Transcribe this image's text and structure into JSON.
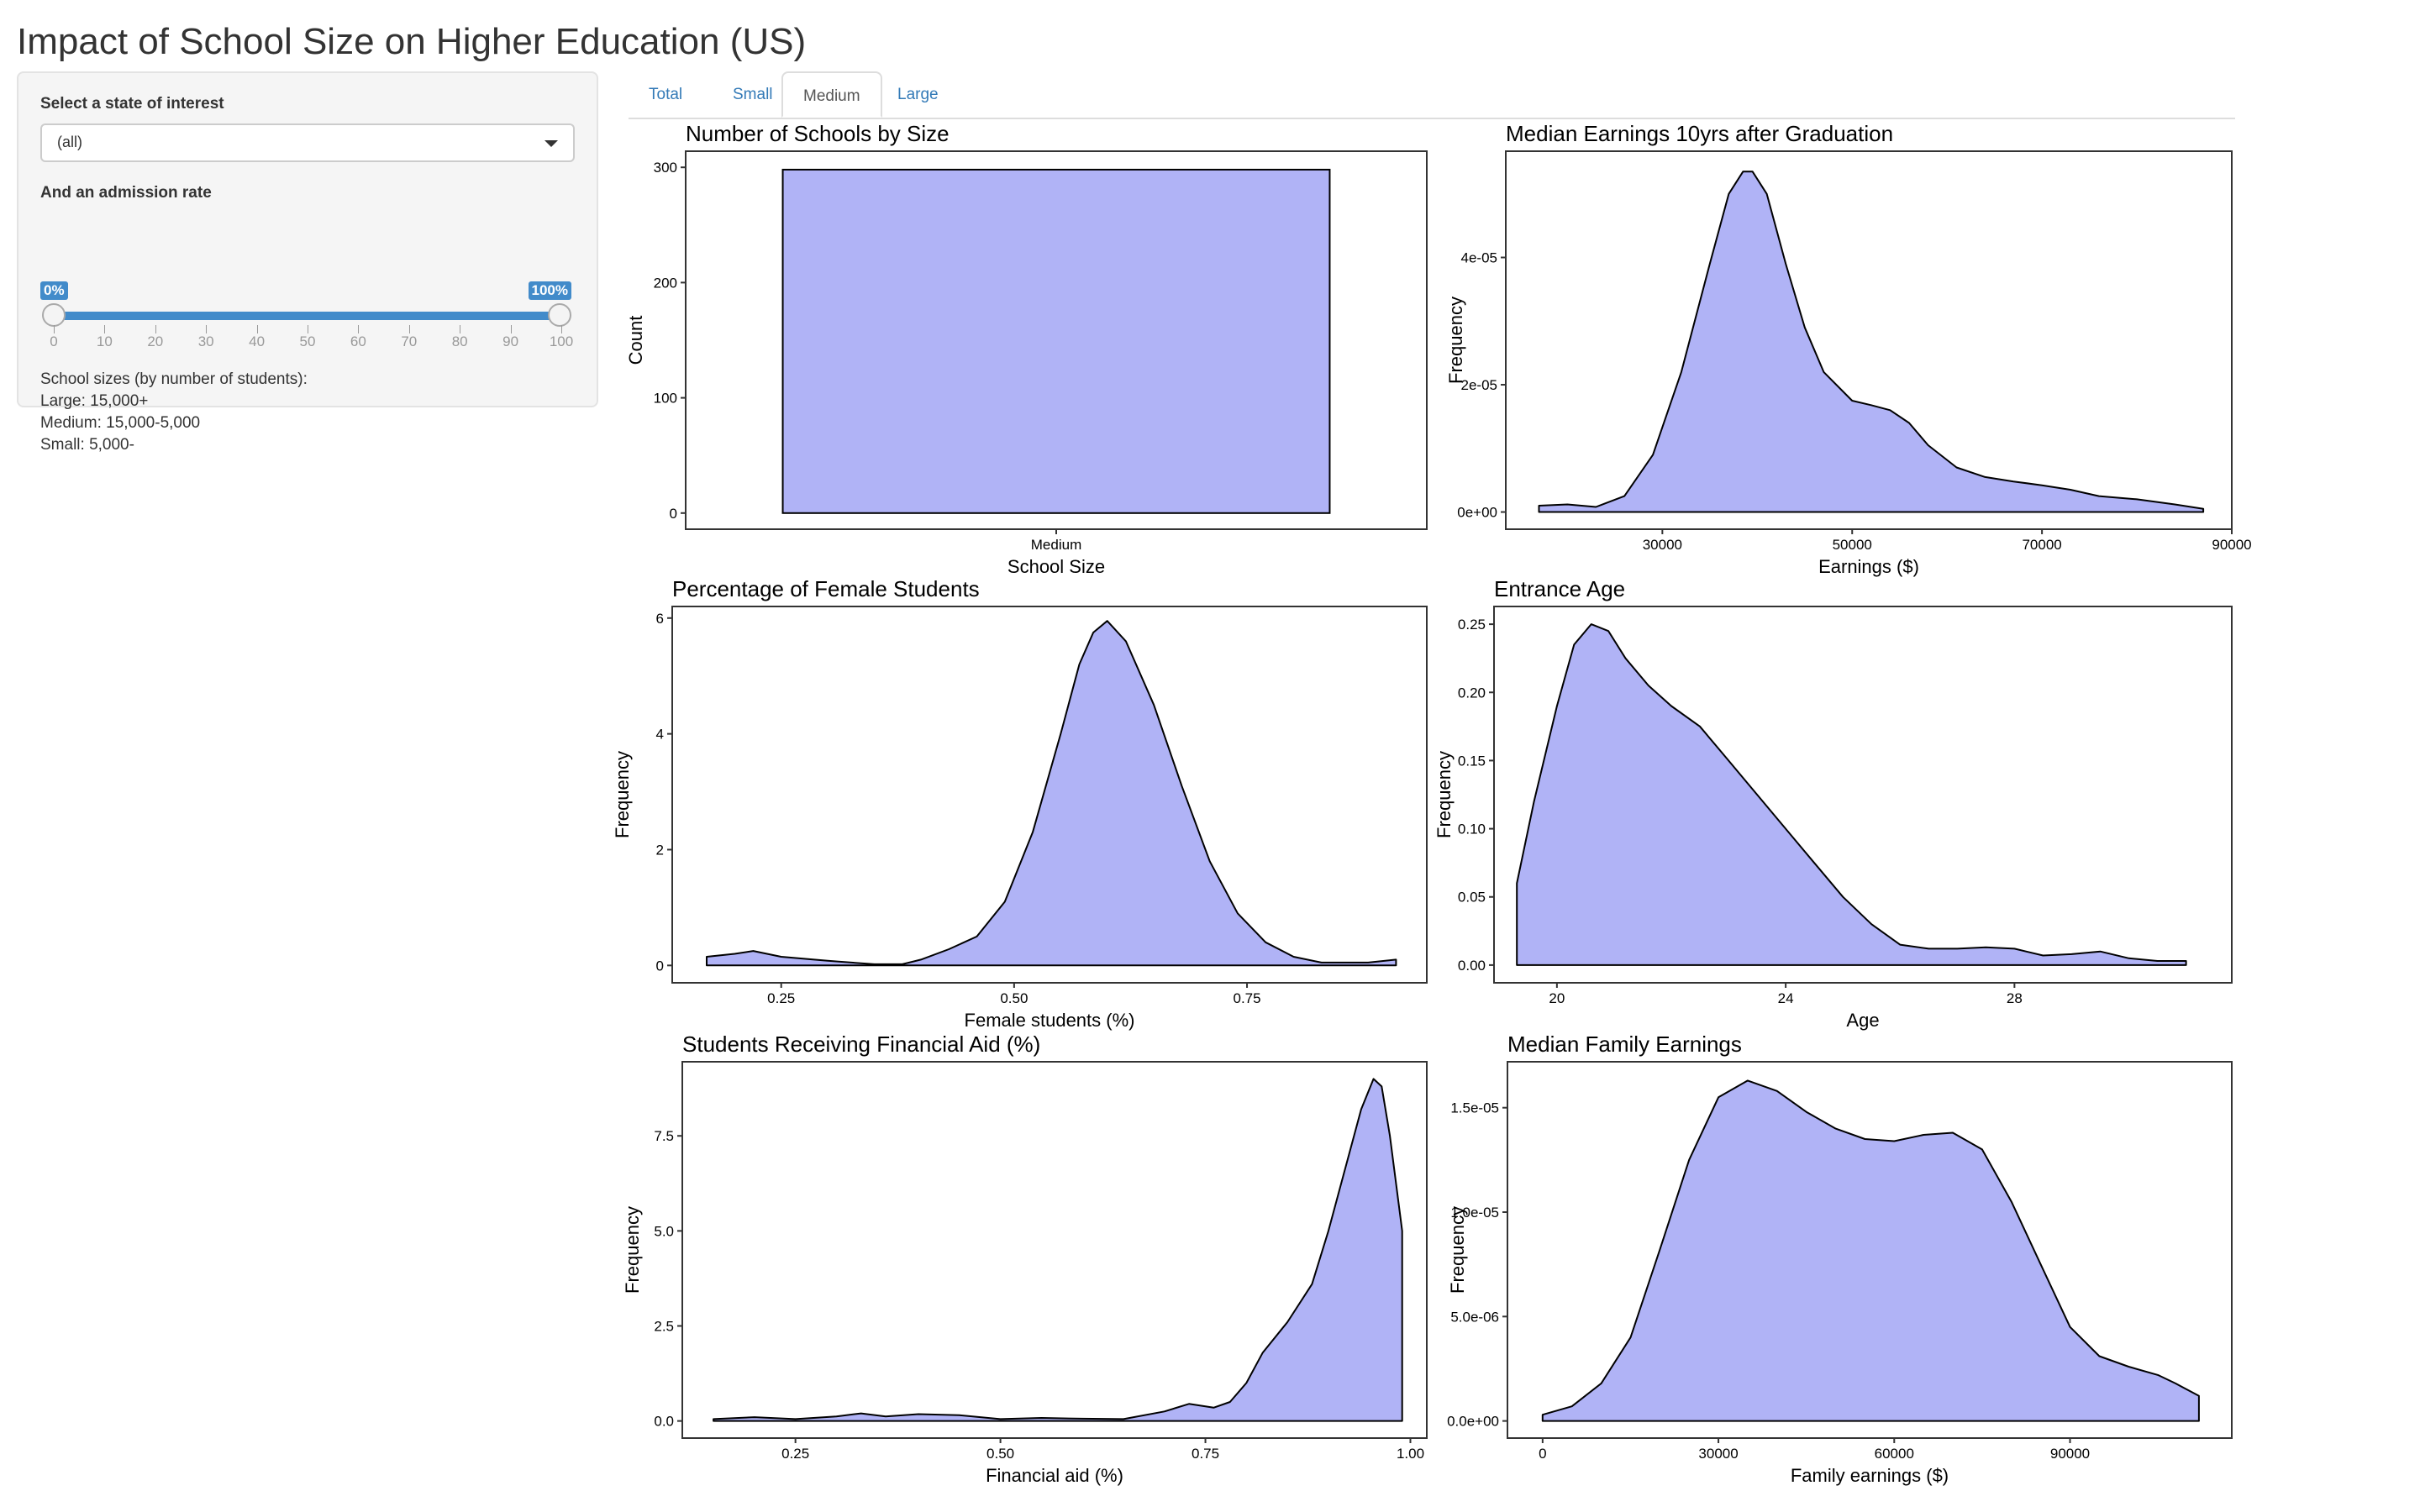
{
  "page_title": "Impact of School Size on Higher Education (US)",
  "sidebar": {
    "state_label": "Select a state of interest",
    "state_value": "(all)",
    "rate_label": "And an admission rate",
    "slider": {
      "min_label": "0%",
      "max_label": "100%",
      "min": 0,
      "max": 100,
      "ticks": [
        "0",
        "10",
        "20",
        "30",
        "40",
        "50",
        "60",
        "70",
        "80",
        "90",
        "100"
      ]
    },
    "info": [
      "School sizes (by number of students):",
      "Large: 15,000+",
      "Medium: 15,000-5,000",
      "Small: 5,000-"
    ]
  },
  "tabs": [
    {
      "label": "Total",
      "active": false
    },
    {
      "label": "Small",
      "active": false
    },
    {
      "label": "Medium",
      "active": true
    },
    {
      "label": "Large",
      "active": false
    }
  ],
  "colors": {
    "fill": "#b0b3f6",
    "stroke": "#000000",
    "accent": "#428bca",
    "tab_link": "#337ab7"
  },
  "chart_data": [
    {
      "type": "bar",
      "title": "Number of Schools by Size",
      "xlabel": "School Size",
      "ylabel": "Count",
      "categories": [
        "Medium"
      ],
      "values": [
        298
      ],
      "ylim": [
        -14,
        314
      ],
      "yticks": [
        0,
        100,
        200,
        300
      ],
      "ytick_labels": [
        "0",
        "100",
        "200",
        "300"
      ]
    },
    {
      "type": "area",
      "title": "Median Earnings 10yrs after Graduation",
      "xlabel": "Earnings ($)",
      "ylabel": "Frequency",
      "xlim": [
        13500,
        90000
      ],
      "ylim": [
        -2.7e-06,
        5.67e-05
      ],
      "xticks": [
        30000,
        50000,
        70000,
        90000
      ],
      "xtick_labels": [
        "30000",
        "50000",
        "70000",
        "90000"
      ],
      "yticks": [
        0,
        2e-05,
        4e-05
      ],
      "ytick_labels": [
        "0e+00",
        "2e-05",
        "4e-05"
      ],
      "x": [
        17000,
        20000,
        23000,
        26000,
        29000,
        32000,
        35000,
        37000,
        38500,
        39500,
        41000,
        43000,
        45000,
        47000,
        50000,
        52000,
        54000,
        56000,
        58000,
        61000,
        64000,
        67000,
        70000,
        73000,
        76000,
        80000,
        84000,
        87000
      ],
      "y": [
        1e-06,
        1.2e-06,
        8e-07,
        2.5e-06,
        9e-06,
        2.2e-05,
        3.9e-05,
        5e-05,
        5.35e-05,
        5.35e-05,
        5e-05,
        3.9e-05,
        2.9e-05,
        2.2e-05,
        1.75e-05,
        1.68e-05,
        1.6e-05,
        1.4e-05,
        1.05e-05,
        7e-06,
        5.5e-06,
        4.8e-06,
        4.2e-06,
        3.5e-06,
        2.5e-06,
        2e-06,
        1.2e-06,
        5e-07
      ]
    },
    {
      "type": "area",
      "title": "Percentage of Female Students",
      "xlabel": "Female students (%)",
      "ylabel": "Frequency",
      "xlim": [
        0.133,
        0.943
      ],
      "ylim": [
        -0.3,
        6.2
      ],
      "xticks": [
        0.25,
        0.5,
        0.75
      ],
      "xtick_labels": [
        "0.25",
        "0.50",
        "0.75"
      ],
      "yticks": [
        0,
        2,
        4,
        6
      ],
      "ytick_labels": [
        "0",
        "2",
        "4",
        "6"
      ],
      "x": [
        0.17,
        0.2,
        0.22,
        0.25,
        0.3,
        0.35,
        0.38,
        0.4,
        0.43,
        0.46,
        0.49,
        0.52,
        0.55,
        0.57,
        0.585,
        0.6,
        0.62,
        0.65,
        0.68,
        0.71,
        0.74,
        0.77,
        0.8,
        0.83,
        0.85,
        0.88,
        0.91
      ],
      "y": [
        0.15,
        0.2,
        0.25,
        0.15,
        0.08,
        0.02,
        0.02,
        0.1,
        0.28,
        0.5,
        1.1,
        2.3,
        4.0,
        5.2,
        5.75,
        5.95,
        5.6,
        4.5,
        3.1,
        1.8,
        0.9,
        0.4,
        0.15,
        0.05,
        0.05,
        0.05,
        0.1
      ]
    },
    {
      "type": "area",
      "title": "Entrance Age",
      "xlabel": "Age",
      "ylabel": "Frequency",
      "xlim": [
        18.9,
        31.8
      ],
      "ylim": [
        -0.013,
        0.263
      ],
      "xticks": [
        20,
        24,
        28
      ],
      "xtick_labels": [
        "20",
        "24",
        "28"
      ],
      "yticks": [
        0,
        0.05,
        0.1,
        0.15,
        0.2,
        0.25
      ],
      "ytick_labels": [
        "0.00",
        "0.05",
        "0.10",
        "0.15",
        "0.20",
        "0.25"
      ],
      "x": [
        19.3,
        19.6,
        20.0,
        20.3,
        20.6,
        20.9,
        21.2,
        21.6,
        22.0,
        22.5,
        23.0,
        23.5,
        24.0,
        24.5,
        25.0,
        25.5,
        26.0,
        26.5,
        27.0,
        27.5,
        28.0,
        28.5,
        29.0,
        29.5,
        30.0,
        30.5,
        31.0
      ],
      "y": [
        0.06,
        0.12,
        0.19,
        0.235,
        0.25,
        0.245,
        0.225,
        0.205,
        0.19,
        0.175,
        0.15,
        0.125,
        0.1,
        0.075,
        0.05,
        0.03,
        0.015,
        0.012,
        0.012,
        0.013,
        0.012,
        0.007,
        0.008,
        0.01,
        0.005,
        0.003,
        0.003
      ]
    },
    {
      "type": "area",
      "title": "Students Receiving Financial Aid (%)",
      "xlabel": "Financial aid (%)",
      "ylabel": "Frequency",
      "xlim": [
        0.112,
        1.02
      ],
      "ylim": [
        -0.45,
        9.45
      ],
      "xticks": [
        0.25,
        0.5,
        0.75,
        1.0
      ],
      "xtick_labels": [
        "0.25",
        "0.50",
        "0.75",
        "1.00"
      ],
      "yticks": [
        0,
        2.5,
        5,
        7.5
      ],
      "ytick_labels": [
        "0.0",
        "2.5",
        "5.0",
        "7.5"
      ],
      "x": [
        0.15,
        0.2,
        0.25,
        0.3,
        0.33,
        0.36,
        0.4,
        0.45,
        0.5,
        0.55,
        0.6,
        0.65,
        0.7,
        0.73,
        0.76,
        0.78,
        0.8,
        0.82,
        0.85,
        0.88,
        0.9,
        0.92,
        0.94,
        0.955,
        0.965,
        0.975,
        0.99,
        0.99
      ],
      "y": [
        0.05,
        0.1,
        0.05,
        0.12,
        0.2,
        0.12,
        0.18,
        0.15,
        0.05,
        0.08,
        0.06,
        0.05,
        0.25,
        0.45,
        0.35,
        0.5,
        1.0,
        1.8,
        2.6,
        3.6,
        5.0,
        6.6,
        8.2,
        9.0,
        8.8,
        7.5,
        5.0,
        4.8
      ]
    },
    {
      "type": "area",
      "title": "Median Family Earnings",
      "xlabel": "Family earnings ($)",
      "ylabel": "Frequency",
      "xlim": [
        -6000,
        117600
      ],
      "ylim": [
        -8.2e-07,
        1.72e-05
      ],
      "xticks": [
        0,
        30000,
        60000,
        90000
      ],
      "xtick_labels": [
        "0",
        "30000",
        "60000",
        "90000"
      ],
      "yticks": [
        0,
        5e-06,
        1e-05,
        1.5e-05
      ],
      "ytick_labels": [
        "0.0e+00",
        "5.0e-06",
        "1.0e-05",
        "1.5e-05"
      ],
      "x": [
        0,
        5000,
        10000,
        15000,
        20000,
        25000,
        30000,
        35000,
        40000,
        45000,
        50000,
        55000,
        60000,
        65000,
        70000,
        75000,
        80000,
        85000,
        90000,
        95000,
        100000,
        105000,
        108000,
        112000
      ],
      "y": [
        3e-07,
        7e-07,
        1.8e-06,
        4e-06,
        8.2e-06,
        1.25e-05,
        1.55e-05,
        1.63e-05,
        1.58e-05,
        1.48e-05,
        1.4e-05,
        1.35e-05,
        1.34e-05,
        1.37e-05,
        1.38e-05,
        1.3e-05,
        1.05e-05,
        7.5e-06,
        4.5e-06,
        3.1e-06,
        2.6e-06,
        2.2e-06,
        1.8e-06,
        1.2e-06
      ]
    }
  ]
}
